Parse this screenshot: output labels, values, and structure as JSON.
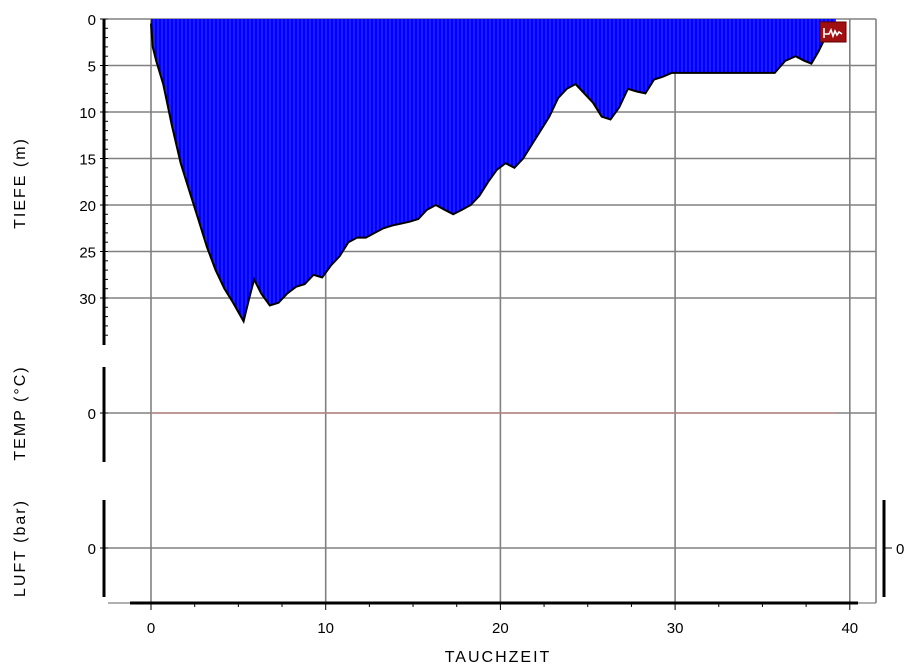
{
  "chart_data": {
    "type": "area",
    "title": "",
    "xlabel": "TAUCHZEIT",
    "x_ticks": [
      "0",
      "10",
      "20",
      "30",
      "40"
    ],
    "xlim": [
      -2.5,
      41.6
    ],
    "grid": true,
    "icon": "dive-profile-icon",
    "colors": {
      "depth_fill": "#0000ff",
      "depth_line": "#000000",
      "temp_line": "#c08080",
      "grid": "#808080",
      "icon_bg": "#a01010"
    },
    "panels": [
      {
        "key": "depth",
        "ylabel": "TIEFE (m)",
        "y_ticks": [
          "0",
          "5",
          "10",
          "15",
          "20",
          "25",
          "30"
        ],
        "ylim": [
          0,
          34
        ],
        "inverted": true,
        "series": [
          {
            "x": [
              0,
              0.1,
              0.3,
              0.7,
              1.2,
              1.7,
              2.2,
              2.7,
              3.2,
              3.7,
              4.2,
              4.7,
              5.0,
              5.3,
              5.6,
              5.9,
              6.3,
              6.8,
              7.3,
              7.8,
              8.3,
              8.8,
              9.3,
              9.8,
              10.3,
              10.8,
              11.3,
              11.8,
              12.3,
              12.8,
              13.3,
              13.8,
              14.3,
              14.8,
              15.3,
              15.8,
              16.3,
              16.8,
              17.3,
              17.8,
              18.3,
              18.8,
              19.3,
              19.8,
              20.3,
              20.8,
              21.3,
              21.8,
              22.3,
              22.8,
              23.3,
              23.8,
              24.3,
              24.8,
              25.3,
              25.8,
              26.3,
              26.8,
              27.3,
              27.8,
              28.3,
              28.8,
              29.3,
              29.8,
              30.3,
              31.0,
              32.0,
              33.0,
              34.0,
              35.0,
              35.7,
              36.3,
              36.9,
              37.4,
              37.8,
              38.2,
              38.6,
              39.2
            ],
            "y": [
              0.5,
              3,
              4.5,
              7,
              11.5,
              15.5,
              18.5,
              21.5,
              24.5,
              27,
              29,
              30.5,
              31.5,
              32.5,
              30.2,
              28,
              29.5,
              30.8,
              30.5,
              29.5,
              28.8,
              28.5,
              27.5,
              27.8,
              26.5,
              25.5,
              24,
              23.5,
              23.5,
              23,
              22.5,
              22.2,
              22,
              21.8,
              21.5,
              20.5,
              20,
              20.5,
              21,
              20.5,
              20,
              19,
              17.5,
              16.2,
              15.5,
              16,
              15,
              13.5,
              12,
              10.5,
              8.5,
              7.5,
              7,
              8,
              9,
              10.5,
              10.8,
              9.5,
              7.5,
              7.8,
              8,
              6.5,
              6.2,
              5.8,
              5.8,
              5.8,
              5.8,
              5.8,
              5.8,
              5.8,
              5.8,
              4.5,
              4,
              4.5,
              4.8,
              3.5,
              2,
              0.5
            ]
          }
        ]
      },
      {
        "key": "temp",
        "ylabel": "TEMP (°C)",
        "y_ticks": [
          "0"
        ],
        "series": [
          {
            "x": [
              0,
              39.2
            ],
            "y": [
              0,
              0
            ]
          }
        ]
      },
      {
        "key": "air",
        "ylabel": "LUFT (bar)",
        "y_ticks": [
          "0"
        ],
        "right_ticks": [
          "0"
        ]
      }
    ]
  }
}
